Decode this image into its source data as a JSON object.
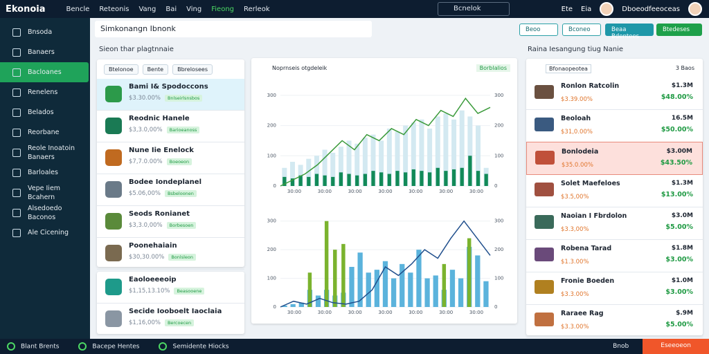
{
  "topbar": {
    "brand": "Ekonoia",
    "menu": [
      "Bencle",
      "Reteonis",
      "Vang",
      "Bai",
      "Ving",
      "Fieong",
      "Rerleok"
    ],
    "menu_active": 5,
    "search": "Bcnelok",
    "user_items": [
      "Ete",
      "Eia"
    ],
    "user_name": "Dboeodfeeoceas"
  },
  "sidebar": {
    "items": [
      "Bnsoda",
      "Banaers",
      "Bacloanes",
      "Renelens",
      "Belados",
      "Reorbane",
      "Reole Inoatoin Banaers",
      "Barloales",
      "Vepe Iiem Bcahern",
      "Alsedoedo Baconos",
      "Ale Cicening"
    ],
    "active": 2
  },
  "toolbar": {
    "dropdown": "Simkonangn Ibnonk",
    "buttons": [
      "Beoo",
      "Bconeo",
      "Beaa Bdentees",
      "Btedeses"
    ]
  },
  "left": {
    "label": "Sieon thar plagtnnaie",
    "tabs": [
      "Btelonoe",
      "Bente",
      "Bbrelosees"
    ],
    "selected": 0,
    "items": [
      {
        "title": "Bami I& Spodoccons",
        "value": "$3.30.00%",
        "tag": "Bnlseirlsnsbos"
      },
      {
        "title": "Reodnic Hanele",
        "value": "$3,3.0,00%",
        "tag": "Barioeanoss"
      },
      {
        "title": "Nune Iie Enelock",
        "value": "$7,7.0.00%",
        "tag": "Boeoeon"
      },
      {
        "title": "Bodee Iondeplanel",
        "value": "$5.06,00%",
        "tag": "Bsbeloonen"
      },
      {
        "title": "Seods Ronianet",
        "value": "$3,3.0,00%",
        "tag": "Borbesoen"
      },
      {
        "title": "Poonehaiain",
        "value": "$30,30.00%",
        "tag": "Bonlsleon"
      }
    ],
    "items2": [
      {
        "title": "Eaoloeeeoip",
        "value": "$1,15,13.10%",
        "tag": "Beasooene"
      },
      {
        "title": "Secide Iooboelt Iaoclaia",
        "value": "$1,16,00%",
        "tag": "Bercoecen"
      }
    ]
  },
  "center": {
    "title": "Noprnseis otgdeleik",
    "badge": "Borblalios",
    "charts": [
      {
        "ylim": [
          0,
          350
        ],
        "yticks": [
          0,
          100,
          200,
          300
        ],
        "xlabels": [
          "30:00",
          "30:00",
          "30:00",
          "30:00",
          "30:00",
          "30:00",
          "30:00"
        ],
        "bars": [
          60,
          80,
          70,
          90,
          100,
          120,
          110,
          130,
          150,
          140,
          160,
          170,
          150,
          190,
          180,
          200,
          210,
          220,
          190,
          230,
          240,
          220,
          250,
          230,
          200,
          60
        ],
        "bar_color": "#d3e9f1",
        "bars2": [
          30,
          25,
          35,
          30,
          40,
          35,
          30,
          45,
          40,
          35,
          40,
          50,
          45,
          40,
          50,
          45,
          55,
          50,
          45,
          60,
          50,
          55,
          60,
          100,
          50,
          40
        ],
        "bar2_color": "#128a58",
        "line": [
          0,
          20,
          40,
          70,
          110,
          150,
          120,
          170,
          150,
          190,
          170,
          220,
          200,
          250,
          230,
          290,
          240,
          260
        ],
        "line_color": "#3a9a3a"
      },
      {
        "ylim": [
          0,
          350
        ],
        "yticks": [
          0,
          100,
          200,
          300
        ],
        "xlabels": [
          "30:00",
          "30:00",
          "30:00",
          "30:00",
          "30:00",
          "30:00",
          "30:00"
        ],
        "bars": [
          5,
          10,
          15,
          60,
          40,
          60,
          40,
          50,
          140,
          190,
          120,
          130,
          160,
          100,
          150,
          120,
          200,
          100,
          110,
          60,
          130,
          100,
          210,
          180,
          90
        ],
        "bar_color": "#5bb3dc",
        "bars2": [
          null,
          null,
          null,
          120,
          null,
          300,
          200,
          220,
          null,
          null,
          null,
          null,
          null,
          null,
          null,
          null,
          null,
          null,
          null,
          150,
          null,
          null,
          240,
          null,
          null
        ],
        "bar2_color": "#7bb32e",
        "line": [
          0,
          20,
          10,
          30,
          15,
          10,
          20,
          60,
          140,
          110,
          150,
          200,
          170,
          240,
          300,
          240,
          180
        ],
        "line_color": "#1f4e8c"
      }
    ]
  },
  "right": {
    "label": "Raina Iesangung tiug Nanie",
    "header": "Bfonaopeotea",
    "count": "3 Baos",
    "highlight": 2,
    "items": [
      {
        "title": "Ronlon Ratcolin",
        "value": "$3.39.00%",
        "amount": "$1.3M",
        "change": "$48.00%"
      },
      {
        "title": "Beoloah",
        "value": "$31,0.00%",
        "amount": "16.5M",
        "change": "$50.00%"
      },
      {
        "title": "Bonlodeia",
        "value": "$35.0.00%",
        "amount": "$3.00M",
        "change": "$43.50%"
      },
      {
        "title": "Solet Maefeloes",
        "value": "$3.5,00%",
        "amount": "$1.3M",
        "change": "$13.00%"
      },
      {
        "title": "Naoian I Fbrdolon",
        "value": "$3.3,00%",
        "amount": "$3.0M",
        "change": "$5.00%"
      },
      {
        "title": "Robena Tarad",
        "value": "$1.3.00%",
        "amount": "$1.8M",
        "change": "$3.00%"
      },
      {
        "title": "Fronie Boeden",
        "value": "$3.3.00%",
        "amount": "$1.0M",
        "change": "$3.00%"
      },
      {
        "title": "Raraee Rag",
        "value": "$3.3.00%",
        "amount": "$.9M",
        "change": "$5.00%"
      }
    ]
  },
  "bottombar": {
    "items": [
      "Blant Brents",
      "Bacepe Hentes",
      "Semidente Hiocks"
    ],
    "right": "Bnob",
    "button": "Eseeoeon"
  }
}
